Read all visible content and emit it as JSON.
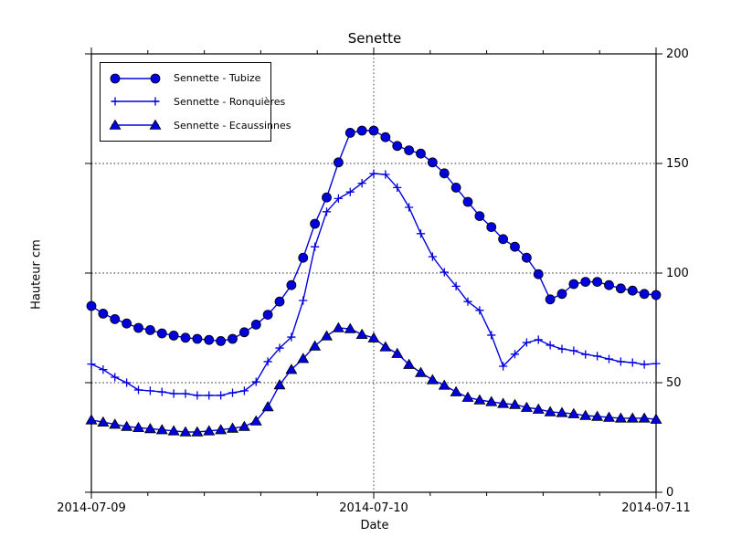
{
  "figure": {
    "title": "Senette",
    "xlabel": "Date",
    "ylabel": "Hauteur cm"
  },
  "chart_data": {
    "type": "line",
    "title": "Senette",
    "xlabel": "Date",
    "ylabel": "Hauteur cm",
    "ylim": [
      0,
      200
    ],
    "yticks": [
      0,
      50,
      100,
      150,
      200
    ],
    "x_tick_labels": [
      "2014-07-09",
      "2014-07-10",
      "2014-07-11"
    ],
    "x_start_hour": 0,
    "x_end_hour": 48,
    "x_step_hours": 1,
    "grid": "dotted horizontal at 50/100/150, dotted vertical at 2014-07-10",
    "legend_position": "upper left",
    "line_color": "#0000dd",
    "marker_edge_color": "#000000",
    "series": [
      {
        "name": "Sennette - Tubize",
        "marker": "circle",
        "values": [
          85,
          81.5,
          79,
          77,
          75,
          74,
          72.5,
          71.5,
          70.5,
          70,
          69.5,
          69,
          70,
          73,
          76.5,
          81,
          87,
          94.5,
          107,
          122.5,
          134.5,
          150.5,
          164,
          165,
          165,
          162,
          158,
          156,
          154.5,
          150.5,
          145.5,
          139,
          132.5,
          126,
          121,
          115.5,
          112,
          107,
          99.5,
          88,
          90.5,
          95,
          96,
          96,
          94.5,
          93,
          92,
          90.5,
          90
        ]
      },
      {
        "name": "Sennette - Ronquières",
        "marker": "plus",
        "values": [
          58.5,
          56,
          52.5,
          50,
          46.7,
          46.3,
          45.8,
          45,
          45,
          44.2,
          44.2,
          44.2,
          45.4,
          46.3,
          50.4,
          59.6,
          65.8,
          70.8,
          87.5,
          112,
          128,
          134,
          137,
          141,
          145.4,
          145,
          139,
          130,
          118,
          107.5,
          100.4,
          94,
          87,
          83,
          71.7,
          57.5,
          63,
          68.3,
          69.6,
          67.1,
          65.4,
          64.6,
          62.9,
          62.1,
          60.8,
          59.6,
          59.2,
          58.3,
          58.7
        ]
      },
      {
        "name": "Sennette - Ecaussinnes",
        "marker": "triangle",
        "values": [
          33,
          32,
          31,
          30,
          29.5,
          29,
          28.5,
          28,
          27.5,
          27.5,
          28,
          28.5,
          29.2,
          30,
          32.5,
          39,
          49,
          56,
          61,
          66.7,
          71.3,
          75,
          74.6,
          72,
          70.4,
          66.3,
          63.3,
          58.3,
          54.6,
          51.3,
          48.8,
          45.8,
          43.3,
          42.1,
          41.3,
          40.5,
          40,
          38.7,
          37.9,
          36.7,
          36.3,
          35.8,
          35,
          34.6,
          34.2,
          33.8,
          33.8,
          33.8,
          33.3
        ]
      }
    ]
  }
}
